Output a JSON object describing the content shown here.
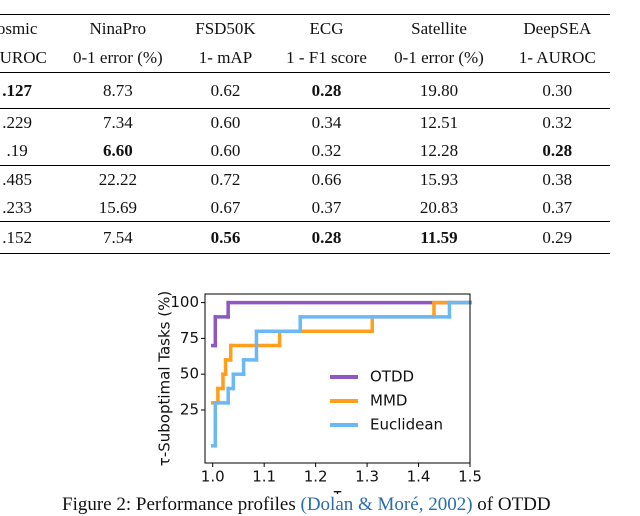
{
  "table": {
    "header": [
      [
        "osmic",
        "NinaPro",
        "FSD50K",
        "ECG",
        "Satellite",
        "DeepSEA"
      ],
      [
        "AUROC",
        "0-1 error (%)",
        "1- mAP",
        "1 - F1 score",
        "0-1 error (%)",
        "1- AUROC"
      ]
    ],
    "rows": [
      [
        ".127",
        "8.73",
        "0.62",
        "0.28",
        "19.80",
        "0.30"
      ],
      [
        ".229",
        "7.34",
        "0.60",
        "0.34",
        "12.51",
        "0.32"
      ],
      [
        ".19",
        "6.60",
        "0.60",
        "0.32",
        "12.28",
        "0.28"
      ],
      [
        ".485",
        "22.22",
        "0.72",
        "0.66",
        "15.93",
        "0.38"
      ],
      [
        ".233",
        "15.69",
        "0.67",
        "0.37",
        "20.83",
        "0.37"
      ],
      [
        ".152",
        "7.54",
        "0.56",
        "0.28",
        "11.59",
        "0.29"
      ]
    ]
  },
  "chart_data": {
    "type": "step",
    "xlabel": "τ",
    "ylabel": "τ-Suboptimal Tasks (%)",
    "xlim": [
      0.985,
      1.5
    ],
    "ylim": [
      -12,
      106
    ],
    "xticks": [
      {
        "value": 1.0,
        "label": "1.0"
      },
      1.1,
      1.2,
      1.3,
      1.4,
      1.5
    ],
    "yticks": [
      25,
      50,
      75,
      100
    ],
    "legend": "lower right",
    "series": [
      {
        "name": "OTDD",
        "color": "#8e57c2",
        "x": [
          1.0,
          1.005,
          1.03,
          1.5
        ],
        "values": [
          70,
          90,
          100,
          100
        ]
      },
      {
        "name": "MMD",
        "color": "#ff9f1c",
        "x": [
          1.0,
          1.01,
          1.02,
          1.025,
          1.035,
          1.13,
          1.31,
          1.43,
          1.5
        ],
        "values": [
          30,
          40,
          50,
          60,
          70,
          80,
          90,
          100,
          100
        ]
      },
      {
        "name": "Euclidean",
        "color": "#6ab8f5",
        "x": [
          1.0,
          1.005,
          1.03,
          1.04,
          1.06,
          1.085,
          1.17,
          1.46,
          1.5
        ],
        "values": [
          0,
          30,
          40,
          50,
          60,
          80,
          90,
          100,
          100
        ]
      }
    ]
  },
  "caption": {
    "label": "Figure 2:",
    "text": "Performance profiles",
    "cite": "(Dolan & Moré, 2002)",
    "rest": "of OTDD"
  }
}
